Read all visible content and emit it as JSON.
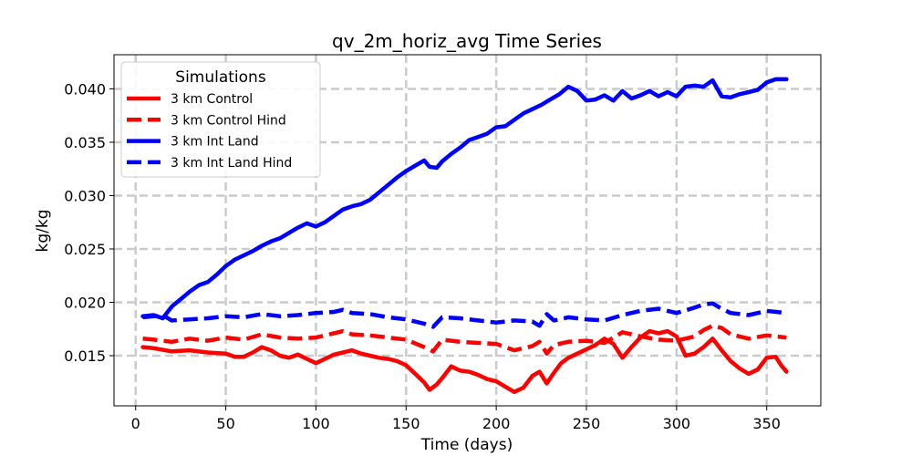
{
  "chart_data": {
    "type": "line",
    "title": "qv_2m_horiz_avg Time Series",
    "xlabel": "Time (days)",
    "ylabel": "kg/kg",
    "xlim": [
      -12,
      380
    ],
    "ylim": [
      0.0103,
      0.0432
    ],
    "xticks": [
      0,
      50,
      100,
      150,
      200,
      250,
      300,
      350
    ],
    "xtick_labels": [
      "0",
      "50",
      "100",
      "150",
      "200",
      "250",
      "300",
      "350"
    ],
    "yticks": [
      0.015,
      0.02,
      0.025,
      0.03,
      0.035,
      0.04
    ],
    "ytick_labels": [
      "0.015",
      "0.020",
      "0.025",
      "0.030",
      "0.035",
      "0.040"
    ],
    "grid": true,
    "legend": {
      "title": "Simulations",
      "placement": "top-left"
    },
    "series": [
      {
        "name": "3 km Control",
        "color": "#ff0000",
        "linestyle": "solid",
        "x": [
          4,
          10,
          20,
          30,
          40,
          50,
          55,
          60,
          65,
          70,
          75,
          80,
          85,
          90,
          95,
          100,
          105,
          110,
          115,
          120,
          125,
          130,
          135,
          140,
          145,
          150,
          155,
          160,
          163,
          167,
          170,
          175,
          180,
          185,
          190,
          195,
          200,
          205,
          210,
          215,
          220,
          224,
          228,
          232,
          236,
          240,
          245,
          250,
          255,
          260,
          265,
          270,
          275,
          280,
          285,
          290,
          295,
          300,
          305,
          310,
          315,
          320,
          325,
          330,
          335,
          340,
          345,
          350,
          355,
          358,
          361
        ],
        "values": [
          0.0158,
          0.0157,
          0.0154,
          0.0155,
          0.0153,
          0.0152,
          0.0149,
          0.0149,
          0.0153,
          0.0158,
          0.0155,
          0.015,
          0.0148,
          0.0151,
          0.0147,
          0.0143,
          0.0147,
          0.0151,
          0.0153,
          0.0155,
          0.0152,
          0.015,
          0.0148,
          0.0147,
          0.0145,
          0.0141,
          0.0133,
          0.0125,
          0.0118,
          0.0123,
          0.0129,
          0.014,
          0.0136,
          0.0135,
          0.0132,
          0.0128,
          0.0126,
          0.0121,
          0.0116,
          0.012,
          0.0131,
          0.0135,
          0.0124,
          0.0134,
          0.0143,
          0.0148,
          0.0152,
          0.0156,
          0.016,
          0.0166,
          0.0161,
          0.0148,
          0.0158,
          0.0167,
          0.0173,
          0.0171,
          0.0173,
          0.0168,
          0.015,
          0.0152,
          0.0158,
          0.0166,
          0.0155,
          0.0145,
          0.0138,
          0.0133,
          0.0137,
          0.0148,
          0.0149,
          0.0141,
          0.0135
        ]
      },
      {
        "name": "3 km Control Hind",
        "color": "#ff0000",
        "linestyle": "dashed",
        "x": [
          4,
          10,
          20,
          30,
          40,
          50,
          60,
          70,
          80,
          90,
          100,
          110,
          115,
          120,
          130,
          140,
          150,
          160,
          165,
          170,
          180,
          190,
          200,
          210,
          220,
          224,
          228,
          232,
          240,
          250,
          260,
          270,
          280,
          290,
          300,
          310,
          315,
          320,
          325,
          330,
          340,
          350,
          361
        ],
        "values": [
          0.0166,
          0.0165,
          0.0163,
          0.0166,
          0.0164,
          0.0167,
          0.0165,
          0.017,
          0.0167,
          0.0166,
          0.0167,
          0.0171,
          0.0173,
          0.017,
          0.0169,
          0.0167,
          0.0165,
          0.0158,
          0.0154,
          0.0165,
          0.0163,
          0.0162,
          0.0161,
          0.0155,
          0.0159,
          0.0163,
          0.0152,
          0.016,
          0.0163,
          0.0164,
          0.0162,
          0.0172,
          0.0168,
          0.0165,
          0.0164,
          0.0168,
          0.0174,
          0.0178,
          0.0176,
          0.017,
          0.0166,
          0.0169,
          0.0167
        ]
      },
      {
        "name": "3 km Int Land",
        "color": "#0000ff",
        "linestyle": "solid",
        "x": [
          4,
          10,
          15,
          20,
          25,
          30,
          35,
          40,
          45,
          50,
          55,
          60,
          65,
          70,
          75,
          80,
          85,
          90,
          95,
          100,
          105,
          110,
          115,
          120,
          125,
          130,
          135,
          140,
          145,
          150,
          155,
          160,
          163,
          167,
          170,
          175,
          180,
          185,
          190,
          195,
          200,
          205,
          210,
          215,
          220,
          225,
          230,
          235,
          240,
          245,
          250,
          255,
          260,
          265,
          270,
          275,
          280,
          285,
          290,
          295,
          300,
          305,
          310,
          315,
          320,
          325,
          330,
          335,
          340,
          345,
          350,
          355,
          361
        ],
        "values": [
          0.0187,
          0.0188,
          0.0185,
          0.0196,
          0.0203,
          0.021,
          0.0216,
          0.0219,
          0.0226,
          0.0234,
          0.024,
          0.0244,
          0.0248,
          0.0253,
          0.0257,
          0.026,
          0.0265,
          0.027,
          0.0274,
          0.0271,
          0.0275,
          0.0281,
          0.0287,
          0.029,
          0.0292,
          0.0296,
          0.0303,
          0.031,
          0.0317,
          0.0323,
          0.0328,
          0.0333,
          0.0327,
          0.0326,
          0.0332,
          0.0339,
          0.0345,
          0.0352,
          0.0355,
          0.0358,
          0.0364,
          0.0365,
          0.0371,
          0.0377,
          0.0381,
          0.0385,
          0.039,
          0.0395,
          0.0402,
          0.0398,
          0.0389,
          0.039,
          0.0394,
          0.0389,
          0.0398,
          0.0391,
          0.0394,
          0.0398,
          0.0393,
          0.0397,
          0.0393,
          0.0402,
          0.0403,
          0.0402,
          0.0408,
          0.0393,
          0.0392,
          0.0395,
          0.0397,
          0.0399,
          0.0406,
          0.0409,
          0.0409
        ]
      },
      {
        "name": "3 km Int Land Hind",
        "color": "#0000ff",
        "linestyle": "dashed",
        "x": [
          4,
          10,
          15,
          20,
          30,
          40,
          50,
          60,
          70,
          80,
          90,
          100,
          110,
          115,
          120,
          130,
          140,
          150,
          160,
          165,
          170,
          180,
          190,
          200,
          210,
          220,
          224,
          228,
          232,
          240,
          250,
          260,
          270,
          280,
          290,
          300,
          310,
          315,
          320,
          325,
          330,
          340,
          350,
          361
        ],
        "values": [
          0.0186,
          0.0187,
          0.0188,
          0.0183,
          0.0184,
          0.0185,
          0.0187,
          0.0186,
          0.0189,
          0.0187,
          0.0188,
          0.019,
          0.0191,
          0.0193,
          0.019,
          0.0189,
          0.0186,
          0.0184,
          0.018,
          0.0177,
          0.0186,
          0.0185,
          0.0183,
          0.0181,
          0.0183,
          0.0182,
          0.0178,
          0.0189,
          0.0183,
          0.0186,
          0.0184,
          0.0183,
          0.0188,
          0.0192,
          0.0194,
          0.019,
          0.0195,
          0.0198,
          0.0199,
          0.0194,
          0.019,
          0.0188,
          0.0192,
          0.019
        ]
      }
    ]
  }
}
